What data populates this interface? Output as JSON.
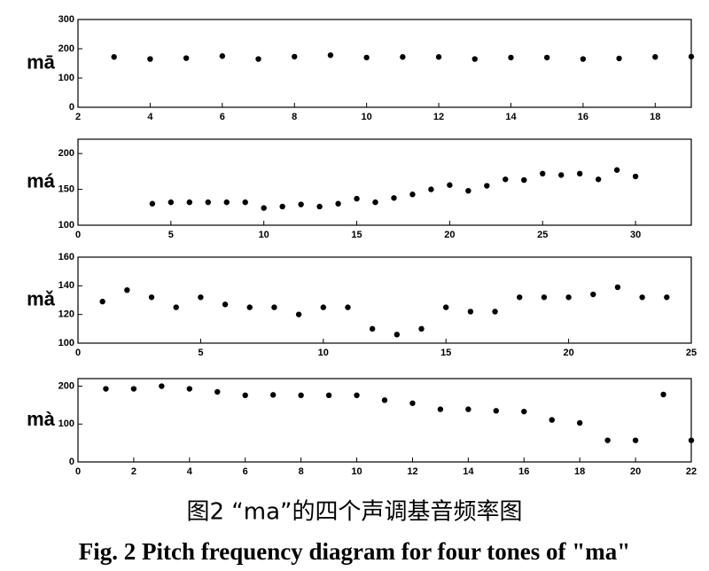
{
  "chart_data": [
    {
      "type": "scatter",
      "ylabel": "mā",
      "color": "#000000",
      "x": [
        3,
        4,
        5,
        6,
        7,
        8,
        9,
        10,
        11,
        12,
        13,
        14,
        15,
        16,
        17,
        18,
        19
      ],
      "values": [
        172,
        165,
        168,
        175,
        165,
        173,
        178,
        170,
        172,
        172,
        165,
        170,
        170,
        165,
        167,
        172,
        173
      ],
      "xlim": [
        2,
        19
      ],
      "xticks": [
        2,
        4,
        6,
        8,
        10,
        12,
        14,
        16,
        18
      ],
      "ylim": [
        0,
        300
      ],
      "yticks": [
        0,
        100,
        200,
        300
      ]
    },
    {
      "type": "scatter",
      "ylabel": "má",
      "color": "#000000",
      "x": [
        4,
        5,
        6,
        7,
        8,
        9,
        10,
        11,
        12,
        13,
        14,
        15,
        16,
        17,
        18,
        19,
        20,
        21,
        22,
        23,
        24,
        25,
        26,
        27,
        28,
        29,
        30
      ],
      "values": [
        130,
        132,
        132,
        132,
        132,
        132,
        124,
        126,
        129,
        126,
        130,
        137,
        132,
        138,
        143,
        150,
        156,
        148,
        155,
        164,
        163,
        172,
        170,
        172,
        164,
        177,
        168
      ],
      "xlim": [
        0,
        33
      ],
      "xticks": [
        0,
        5,
        10,
        15,
        20,
        25,
        30
      ],
      "ylim": [
        100,
        220
      ],
      "yticks": [
        100,
        150,
        200
      ]
    },
    {
      "type": "scatter",
      "ylabel": "mǎ",
      "color": "#000000",
      "x": [
        1,
        2,
        3,
        4,
        5,
        6,
        7,
        8,
        9,
        10,
        11,
        12,
        13,
        14,
        15,
        16,
        17,
        18,
        19,
        20,
        21,
        22,
        23,
        24
      ],
      "values": [
        129,
        137,
        132,
        125,
        132,
        127,
        125,
        125,
        120,
        125,
        125,
        110,
        106,
        110,
        125,
        122,
        122,
        132,
        132,
        132,
        134,
        139,
        132,
        132
      ],
      "xlim": [
        0,
        25
      ],
      "xticks": [
        0,
        5,
        10,
        15,
        20,
        25
      ],
      "ylim": [
        100,
        160
      ],
      "yticks": [
        100,
        120,
        140,
        160
      ]
    },
    {
      "type": "scatter",
      "ylabel": "mà",
      "color": "#000000",
      "x": [
        1,
        2,
        3,
        4,
        5,
        6,
        7,
        8,
        9,
        10,
        11,
        12,
        13,
        14,
        15,
        16,
        17,
        18,
        19,
        20,
        21,
        22
      ],
      "values": [
        193,
        193,
        200,
        193,
        185,
        176,
        177,
        176,
        176,
        176,
        163,
        155,
        139,
        139,
        135,
        133,
        111,
        103,
        57,
        57,
        178,
        57
      ],
      "xlim": [
        0,
        22
      ],
      "xticks": [
        0,
        2,
        4,
        6,
        8,
        10,
        12,
        14,
        16,
        18,
        20,
        22
      ],
      "ylim": [
        0,
        220
      ],
      "yticks": [
        0,
        100,
        200
      ]
    }
  ],
  "figure": {
    "caption_zh": "图2 “ma”的四个声调基音频率图",
    "caption_en": "Fig. 2  Pitch frequency diagram for four tones of \"ma\""
  }
}
